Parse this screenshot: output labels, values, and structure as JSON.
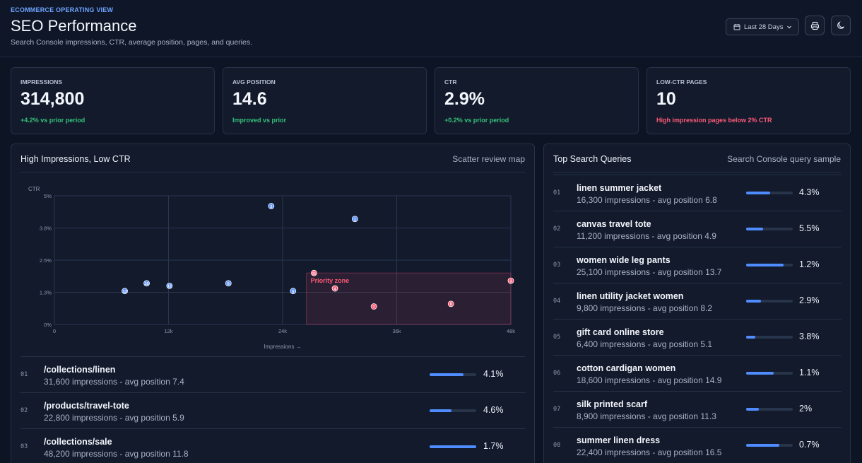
{
  "header": {
    "eyebrow": "ECOMMERCE OPERATING VIEW",
    "title": "SEO Performance",
    "subtitle": "Search Console impressions, CTR, average position, pages, and queries.",
    "date_range": "Last 28 Days",
    "icons": {
      "calendar": "calendar-icon",
      "chevron": "chevron-down-icon",
      "print": "printer-icon",
      "theme": "moon-icon"
    }
  },
  "kpis": [
    {
      "label": "IMPRESSIONS",
      "value": "314,800",
      "delta": "+4.2% vs prior period",
      "tone": "up"
    },
    {
      "label": "AVG POSITION",
      "value": "14.6",
      "delta": "Improved vs prior",
      "tone": "up"
    },
    {
      "label": "CTR",
      "value": "2.9%",
      "delta": "+0.2% vs prior period",
      "tone": "up"
    },
    {
      "label": "LOW-CTR PAGES",
      "value": "10",
      "delta": "High impression pages below 2% CTR",
      "tone": "down"
    }
  ],
  "scatter_panel": {
    "title": "High Impressions, Low CTR",
    "meta": "Scatter review map",
    "rows": [
      {
        "num": "01",
        "title": "/collections/linen",
        "sub": "31,600 impressions - avg position 7.4",
        "pct": "4.1%",
        "fill": 0.72
      },
      {
        "num": "02",
        "title": "/products/travel-tote",
        "sub": "22,800 impressions - avg position 5.9",
        "pct": "4.6%",
        "fill": 0.47
      },
      {
        "num": "03",
        "title": "/collections/sale",
        "sub": "48,200 impressions - avg position 11.8",
        "pct": "1.7%",
        "fill": 1.0
      }
    ]
  },
  "chart_data": {
    "type": "scatter",
    "xlabel": "Impressions →",
    "ylabel": "CTR",
    "xlim": [
      0,
      48000
    ],
    "ylim": [
      0,
      5
    ],
    "x_ticks": [
      "0",
      "12k",
      "24k",
      "36k",
      "48k"
    ],
    "y_ticks": [
      "0%",
      "1.3%",
      "2.5%",
      "3.8%",
      "5%"
    ],
    "zone_label": "Priority zone",
    "zone": {
      "x": [
        26500,
        48000
      ],
      "ctr": [
        0,
        2.0
      ]
    },
    "points": [
      {
        "id": "1",
        "x": 31600,
        "y": 4.1,
        "priority": false
      },
      {
        "id": "2",
        "x": 22800,
        "y": 4.6,
        "priority": false
      },
      {
        "id": "3",
        "x": 48200,
        "y": 1.7,
        "priority": true
      },
      {
        "id": "4",
        "x": 29500,
        "y": 1.4,
        "priority": true
      },
      {
        "id": "5",
        "x": 25100,
        "y": 1.3,
        "priority": false
      },
      {
        "id": "6",
        "x": 18300,
        "y": 1.6,
        "priority": false
      },
      {
        "id": "7",
        "x": 33600,
        "y": 0.7,
        "priority": true
      },
      {
        "id": "8",
        "x": 41700,
        "y": 0.8,
        "priority": true
      },
      {
        "id": "10",
        "x": 9700,
        "y": 1.6,
        "priority": false
      },
      {
        "id": "11",
        "x": 27300,
        "y": 2.0,
        "priority": true
      },
      {
        "id": "12",
        "x": 12100,
        "y": 1.5,
        "priority": false
      },
      {
        "id": "13",
        "x": 7400,
        "y": 1.3,
        "priority": false
      }
    ]
  },
  "queries_panel": {
    "title": "Top Search Queries",
    "meta": "Search Console query sample",
    "rows": [
      {
        "num": "01",
        "title": "linen summer jacket",
        "sub": "16,300 impressions - avg position 6.8",
        "pct": "4.3%",
        "fill": 0.52
      },
      {
        "num": "02",
        "title": "canvas travel tote",
        "sub": "11,200 impressions - avg position 4.9",
        "pct": "5.5%",
        "fill": 0.36
      },
      {
        "num": "03",
        "title": "women wide leg pants",
        "sub": "25,100 impressions - avg position 13.7",
        "pct": "1.2%",
        "fill": 0.8
      },
      {
        "num": "04",
        "title": "linen utility jacket women",
        "sub": "9,800 impressions - avg position 8.2",
        "pct": "2.9%",
        "fill": 0.32
      },
      {
        "num": "05",
        "title": "gift card online store",
        "sub": "6,400 impressions - avg position 5.1",
        "pct": "3.8%",
        "fill": 0.2
      },
      {
        "num": "06",
        "title": "cotton cardigan women",
        "sub": "18,600 impressions - avg position 14.9",
        "pct": "1.1%",
        "fill": 0.59
      },
      {
        "num": "07",
        "title": "silk printed scarf",
        "sub": "8,900 impressions - avg position 11.3",
        "pct": "2%",
        "fill": 0.28
      },
      {
        "num": "08",
        "title": "summer linen dress",
        "sub": "22,400 impressions - avg position 16.5",
        "pct": "0.7%",
        "fill": 0.71
      }
    ]
  }
}
